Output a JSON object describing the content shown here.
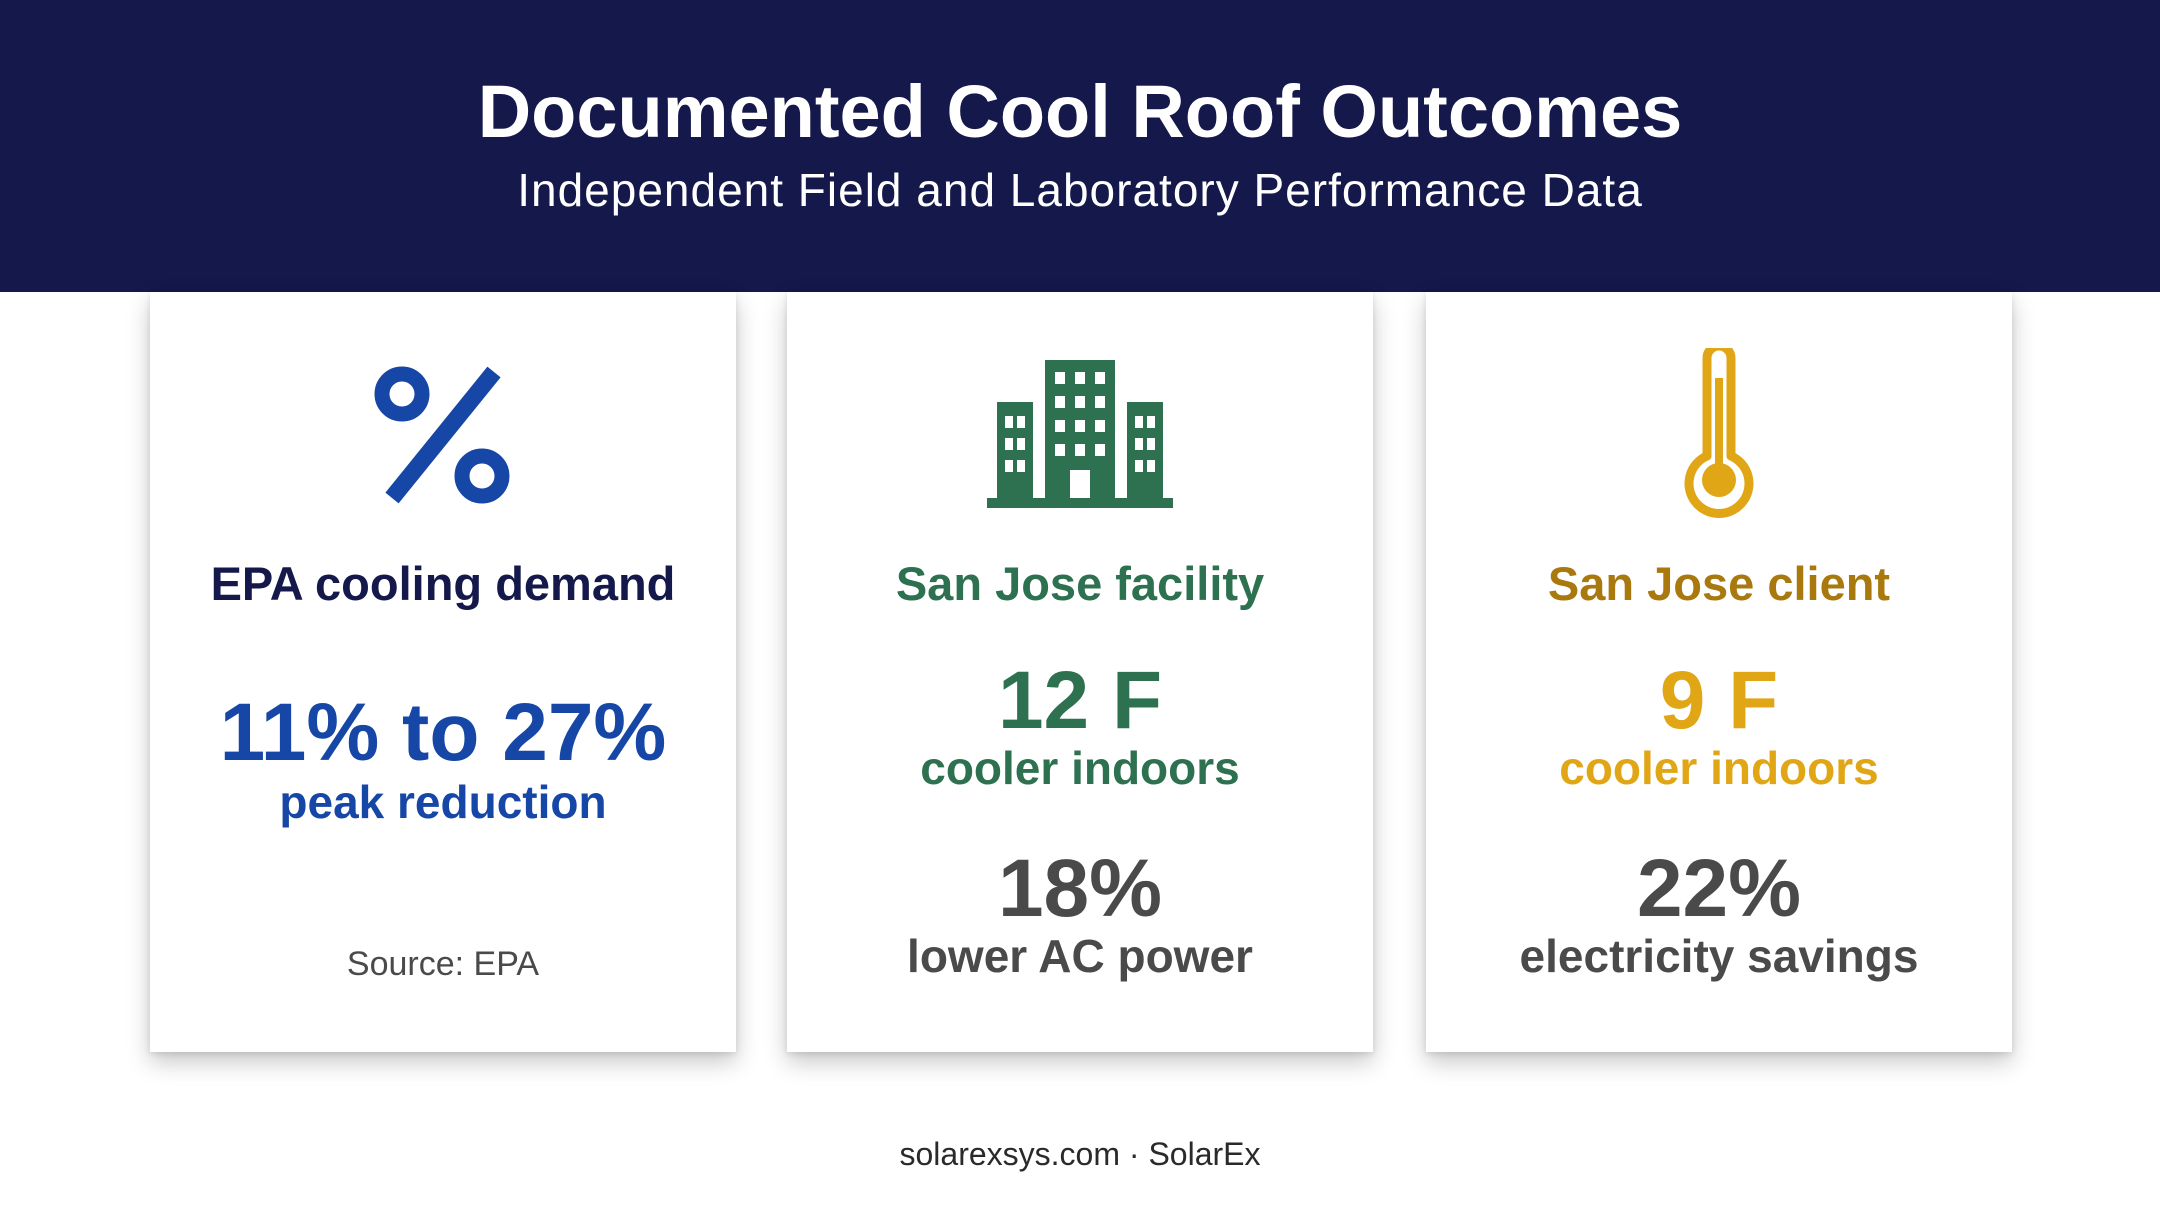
{
  "header": {
    "title": "Documented Cool Roof Outcomes",
    "subtitle": "Independent Field and Laboratory Performance Data",
    "background_color": "#14184a"
  },
  "cards": [
    {
      "icon": "percent-icon",
      "heading": "EPA cooling demand",
      "primary_value": "11% to 27%",
      "primary_label": "peak reduction",
      "source": "Source: EPA",
      "heading_color": "#14184a",
      "accent_color": "#1747a6"
    },
    {
      "icon": "building-icon",
      "heading": "San Jose facility",
      "primary_value": "12 F",
      "primary_label": "cooler indoors",
      "secondary_value": "18%",
      "secondary_label": "lower AC power",
      "accent_color": "#2e7150",
      "secondary_color": "#4a4a4a"
    },
    {
      "icon": "thermometer-icon",
      "heading": "San Jose client",
      "primary_value": "9 F",
      "primary_label": "cooler indoors",
      "secondary_value": "22%",
      "secondary_label": "electricity savings",
      "heading_color": "#a9790e",
      "accent_color": "#e0a616",
      "secondary_color": "#4a4a4a"
    }
  ],
  "footer": {
    "text": "solarexsys.com · SolarEx"
  }
}
